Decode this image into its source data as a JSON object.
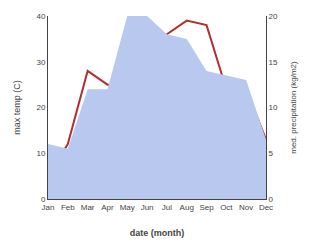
{
  "chart_data": {
    "type": "line",
    "categories": [
      "Jan",
      "Feb",
      "Mar",
      "Apr",
      "May",
      "Jun",
      "Jul",
      "Aug",
      "Sep",
      "Oct",
      "Nov",
      "Dec"
    ],
    "series": [
      {
        "type": "area",
        "color": "#b8c8ee",
        "axis": "y2",
        "values": [
          6,
          5.5,
          12,
          12,
          20,
          20,
          18,
          17.5,
          14,
          13.5,
          13,
          6.5
        ]
      },
      {
        "type": "line",
        "color": "#b03030",
        "values": [
          5,
          12,
          28,
          25,
          25,
          32,
          36,
          39,
          38,
          24,
          24,
          13
        ]
      }
    ],
    "xlabel": "date (month)",
    "ylabel": "max temp (C)",
    "y2label": "med. precipitation (kg/m2)",
    "ylim": [
      0,
      40
    ],
    "yticks": [
      0,
      10,
      20,
      30,
      40
    ],
    "y2lim": [
      0,
      20
    ],
    "y2ticks": [
      0,
      5,
      10,
      15,
      20
    ],
    "grid": false
  }
}
